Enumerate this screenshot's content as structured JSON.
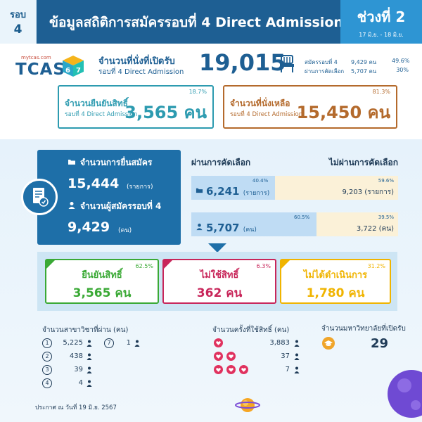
{
  "header": {
    "round_label": "รอบ",
    "round_number": "4",
    "title": "ข้อมูลสถิติการสมัครรอบที่ 4 Direct Admission",
    "phase_label": "ช่วงที่ 2",
    "phase_dates": "17 มิ.ย. - 18 มิ.ย."
  },
  "logo": {
    "small_text": "mytcas.com",
    "brand": "TCAS",
    "cube_left": "6",
    "cube_right": "7"
  },
  "seats": {
    "label_line1": "จำนวนที่นั่งที่เปิดรับ",
    "label_line2": "รอบที่ 4 Direct Admission",
    "value": "19,015",
    "stats": [
      {
        "label": "สมัครรอบที่ 4",
        "value": "9,429 คน",
        "percent": "49.6%"
      },
      {
        "label": "ผ่านการคัดเลือก",
        "value": "5,707 คน",
        "percent": "30%"
      }
    ]
  },
  "confirm_card": {
    "percent": "18.7%",
    "line1": "จำนวนยืนยันสิทธิ์",
    "line2": "รอบที่ 4 Direct Admission",
    "value": "3,565 คน"
  },
  "remaining_card": {
    "percent": "81.3%",
    "line1": "จำนวนที่นั่งเหลือ",
    "line2": "รอบที่ 4 Direct Admission",
    "value": "15,450 คน"
  },
  "applications": {
    "label1": "จำนวนการยื่นสมัคร",
    "value1": "15,444",
    "unit1": "(รายการ)",
    "label2": "จำนวนผู้สมัครรอบที่ 4",
    "value2": "9,429",
    "unit2": "(คน)"
  },
  "columns": {
    "passed": "ผ่านการคัดเลือก",
    "not_passed": "ไม่ผ่านการคัดเลือก"
  },
  "bars": [
    {
      "pass_pct": "40.4%",
      "pass_value": "6,241",
      "pass_unit": "(รายการ)",
      "pass_fraction": 0.404,
      "fail_pct": "59.6%",
      "fail_value": "9,203 (รายการ)"
    },
    {
      "pass_pct": "60.5%",
      "pass_value": "5,707",
      "pass_unit": "(คน)",
      "pass_fraction": 0.605,
      "fail_pct": "39.5%",
      "fail_value": "3,722 (คน)"
    }
  ],
  "results": [
    {
      "percent": "62.5%",
      "label": "ยืนยันสิทธิ์",
      "value": "3,565 คน",
      "color": "#3aa935",
      "icon": "check-icon"
    },
    {
      "percent": "6.3%",
      "label": "ไม่ใช้สิทธิ์",
      "value": "362 คน",
      "color": "#c8265a",
      "icon": "cross-icon"
    },
    {
      "percent": "31.2%",
      "label": "ไม่ได้ดำเนินการ",
      "value": "1,780 คน",
      "color": "#f0b400",
      "icon": "clock-icon"
    }
  ],
  "programs": {
    "title": "จำนวนสาขาวิชาที่ผ่าน (คน)",
    "items": [
      {
        "n": "1",
        "value": "5,225"
      },
      {
        "n": "2",
        "value": "438"
      },
      {
        "n": "3",
        "value": "39"
      },
      {
        "n": "4",
        "value": "4"
      },
      {
        "n": "7",
        "value": "1"
      }
    ]
  },
  "usage": {
    "title": "จำนวนครั้งที่ใช้สิทธิ์ (คน)",
    "items": [
      {
        "hearts": 1,
        "value": "3,883"
      },
      {
        "hearts": 2,
        "value": "37"
      },
      {
        "hearts": 3,
        "value": "7"
      }
    ]
  },
  "universities": {
    "title": "จำนวนมหาวิทยาลัยที่เปิดรับ",
    "value": "29"
  },
  "footer": "ประกาศ ณ วันที่ 19 มิ.ย. 2567"
}
